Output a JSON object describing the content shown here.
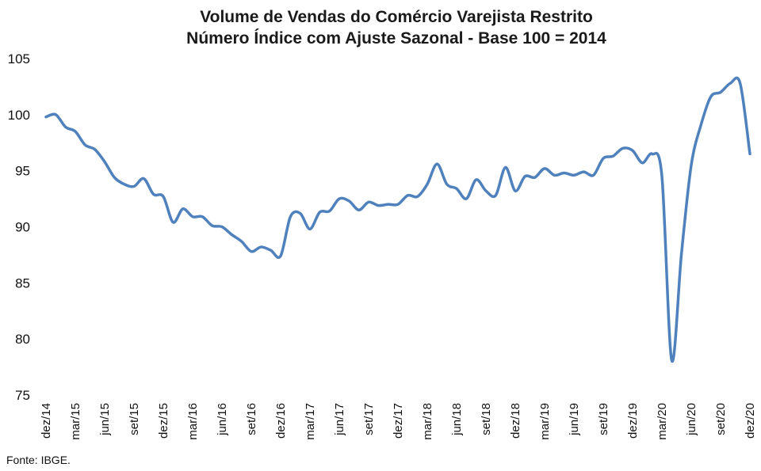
{
  "chart_data": {
    "type": "line",
    "title": "Volume de Vendas do Comércio Varejista Restrito",
    "subtitle": "Número Índice com Ajuste Sazonal - Base 100 = 2014",
    "xlabel": "",
    "ylabel": "",
    "ylim": [
      75,
      105
    ],
    "yticks": [
      "75",
      "80",
      "85",
      "90",
      "95",
      "100",
      "105"
    ],
    "grid": false,
    "legend": "none",
    "line_color": "#4f81bd",
    "x": [
      "dez/14",
      "jan/15",
      "fev/15",
      "mar/15",
      "abr/15",
      "mai/15",
      "jun/15",
      "jul/15",
      "ago/15",
      "set/15",
      "out/15",
      "nov/15",
      "dez/15",
      "jan/16",
      "fev/16",
      "mar/16",
      "abr/16",
      "mai/16",
      "jun/16",
      "jul/16",
      "ago/16",
      "set/16",
      "out/16",
      "nov/16",
      "dez/16",
      "jan/17",
      "fev/17",
      "mar/17",
      "abr/17",
      "mai/17",
      "jun/17",
      "jul/17",
      "ago/17",
      "set/17",
      "out/17",
      "nov/17",
      "dez/17",
      "jan/18",
      "fev/18",
      "mar/18",
      "abr/18",
      "mai/18",
      "jun/18",
      "jul/18",
      "ago/18",
      "set/18",
      "out/18",
      "nov/18",
      "dez/18",
      "jan/19",
      "fev/19",
      "mar/19",
      "abr/19",
      "mai/19",
      "jun/19",
      "jul/19",
      "ago/19",
      "set/19",
      "out/19",
      "nov/19",
      "dez/19",
      "jan/20",
      "fev/20",
      "mar/20",
      "abr/20",
      "mai/20",
      "jun/20",
      "jul/20",
      "ago/20",
      "set/20",
      "out/20",
      "nov/20",
      "dez/20"
    ],
    "xtick_labels": [
      "dez/14",
      "mar/15",
      "jun/15",
      "set/15",
      "dez/15",
      "mar/16",
      "jun/16",
      "set/16",
      "dez/16",
      "mar/17",
      "jun/17",
      "set/17",
      "dez/17",
      "mar/18",
      "jun/18",
      "set/18",
      "dez/18",
      "mar/19",
      "jun/19",
      "set/19",
      "dez/19",
      "mar/20",
      "jun/20",
      "set/20",
      "dez/20"
    ],
    "series": [
      {
        "values": [
          99.8,
          100.0,
          98.9,
          98.5,
          97.3,
          96.9,
          95.8,
          94.4,
          93.8,
          93.6,
          94.3,
          92.9,
          92.7,
          90.4,
          91.6,
          90.9,
          90.9,
          90.1,
          90.0,
          89.3,
          88.7,
          87.8,
          88.2,
          87.9,
          87.4,
          90.9,
          91.2,
          89.8,
          91.3,
          91.4,
          92.5,
          92.3,
          91.5,
          92.2,
          91.9,
          92.0,
          92.0,
          92.8,
          92.7,
          93.8,
          95.6,
          93.8,
          93.4,
          92.5,
          94.2,
          93.2,
          92.8,
          95.3,
          93.2,
          94.5,
          94.4,
          95.2,
          94.6,
          94.8,
          94.6,
          94.9,
          94.6,
          96.1,
          96.3,
          97.0,
          96.8,
          95.7,
          96.5,
          94.5,
          78.1,
          87.6,
          95.5,
          99.1,
          101.6,
          102.0,
          102.8,
          102.8,
          96.5
        ]
      }
    ]
  },
  "source_text": "Fonte: IBGE."
}
